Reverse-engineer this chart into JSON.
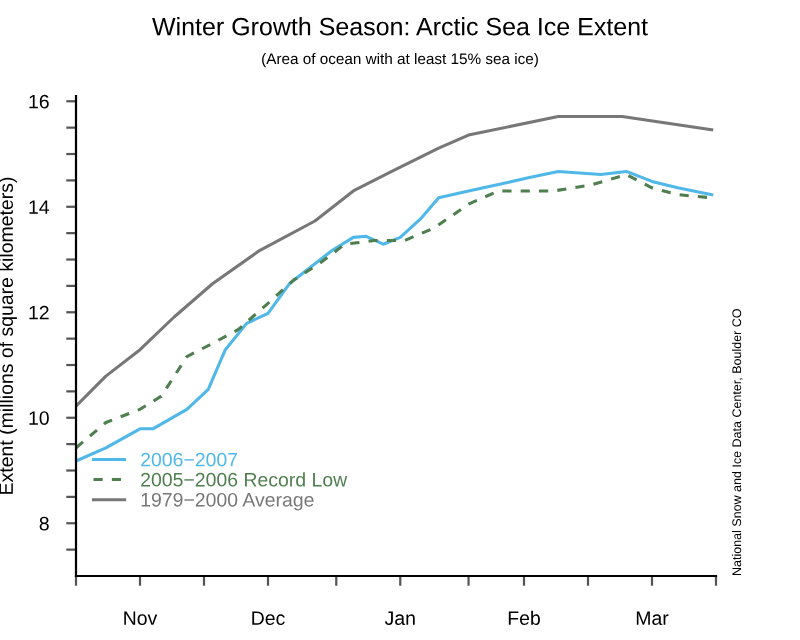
{
  "chart_data": {
    "type": "line",
    "title": "Winter Growth Season: Arctic Sea Ice Extent",
    "subtitle": "(Area of ocean with at least 15% sea ice)",
    "ylabel": "Extent (millions of square kilometers)",
    "annotations": [
      "National Snow and Ice Data Center, Boulder CO"
    ],
    "xlim": [
      "2006-11-01",
      "2007-03-31"
    ],
    "ylim": [
      7,
      16.1
    ],
    "xticks": [
      {
        "value": "2006-11-01",
        "label": null
      },
      {
        "value": "2006-11-16",
        "label": "Nov"
      },
      {
        "value": "2006-12-01",
        "label": null
      },
      {
        "value": "2006-12-16",
        "label": "Dec"
      },
      {
        "value": "2007-01-01",
        "label": null
      },
      {
        "value": "2007-01-16",
        "label": "Jan"
      },
      {
        "value": "2007-02-01",
        "label": null
      },
      {
        "value": "2007-02-14",
        "label": "Feb"
      },
      {
        "value": "2007-03-01",
        "label": null
      },
      {
        "value": "2007-03-16",
        "label": "Mar"
      },
      {
        "value": "2007-03-31",
        "label": null
      }
    ],
    "yticks": [
      {
        "value": 7.5,
        "label": null
      },
      8,
      {
        "value": 8.5,
        "label": null
      },
      {
        "value": 9,
        "label": null
      },
      {
        "value": 9.5,
        "label": null
      },
      10,
      {
        "value": 10.5,
        "label": null
      },
      {
        "value": 11,
        "label": null
      },
      {
        "value": 11.5,
        "label": null
      },
      12,
      {
        "value": 12.5,
        "label": null
      },
      {
        "value": 13,
        "label": null
      },
      {
        "value": 13.5,
        "label": null
      },
      14,
      {
        "value": 14.5,
        "label": null
      },
      {
        "value": 15,
        "label": null
      },
      {
        "value": 15.5,
        "label": null
      },
      16
    ],
    "grid": false,
    "legend": "bottom left",
    "marker": "none",
    "series": [
      {
        "name": "2006−2007",
        "color": "#4fb8e8",
        "line_style": "solid",
        "x": [
          "2006-11-01",
          "2006-11-08",
          "2006-11-16",
          "2006-11-19",
          "2006-11-27",
          "2006-12-02",
          "2006-12-06",
          "2006-12-11",
          "2006-12-16",
          "2006-12-21",
          "2006-12-27",
          "2006-12-31",
          "2007-01-05",
          "2007-01-08",
          "2007-01-12",
          "2007-01-16",
          "2007-01-21",
          "2007-01-25",
          "2007-02-01",
          "2007-02-08",
          "2007-02-15",
          "2007-02-22",
          "2007-03-04",
          "2007-03-10",
          "2007-03-16",
          "2007-03-22",
          "2007-03-30"
        ],
        "values": [
          9.18,
          9.43,
          9.79,
          9.79,
          10.16,
          10.54,
          11.29,
          11.79,
          11.98,
          12.54,
          12.92,
          13.17,
          13.42,
          13.44,
          13.29,
          13.42,
          13.79,
          14.17,
          14.3,
          14.42,
          14.55,
          14.67,
          14.61,
          14.67,
          14.48,
          14.36,
          14.23
        ]
      },
      {
        "name": "2005−2006 Record Low",
        "color": "#4f7f4f",
        "line_style": "dashed",
        "x": [
          "2006-11-01",
          "2006-11-08",
          "2006-11-16",
          "2006-11-21",
          "2006-11-27",
          "2006-12-03",
          "2006-12-09",
          "2006-12-16",
          "2006-12-22",
          "2006-12-28",
          "2007-01-03",
          "2007-01-10",
          "2007-01-17",
          "2007-01-24",
          "2007-02-01",
          "2007-02-08",
          "2007-02-21",
          "2007-03-02",
          "2007-03-10",
          "2007-03-16",
          "2007-03-22",
          "2007-03-30"
        ],
        "values": [
          9.43,
          9.91,
          10.16,
          10.41,
          11.16,
          11.41,
          11.67,
          12.17,
          12.61,
          12.92,
          13.29,
          13.36,
          13.36,
          13.6,
          14.05,
          14.3,
          14.3,
          14.42,
          14.61,
          14.36,
          14.23,
          14.17
        ]
      },
      {
        "name": "1979−2000 Average",
        "color": "#777777",
        "line_style": "solid",
        "x": [
          "2006-11-01",
          "2006-11-08",
          "2006-11-16",
          "2006-11-24",
          "2006-12-03",
          "2006-12-14",
          "2006-12-27",
          "2007-01-05",
          "2007-01-14",
          "2007-01-25",
          "2007-02-01",
          "2007-02-22",
          "2007-03-09",
          "2007-03-30"
        ],
        "values": [
          10.22,
          10.79,
          11.29,
          11.91,
          12.54,
          13.17,
          13.73,
          14.3,
          14.67,
          15.11,
          15.36,
          15.71,
          15.71,
          15.46
        ]
      }
    ]
  }
}
